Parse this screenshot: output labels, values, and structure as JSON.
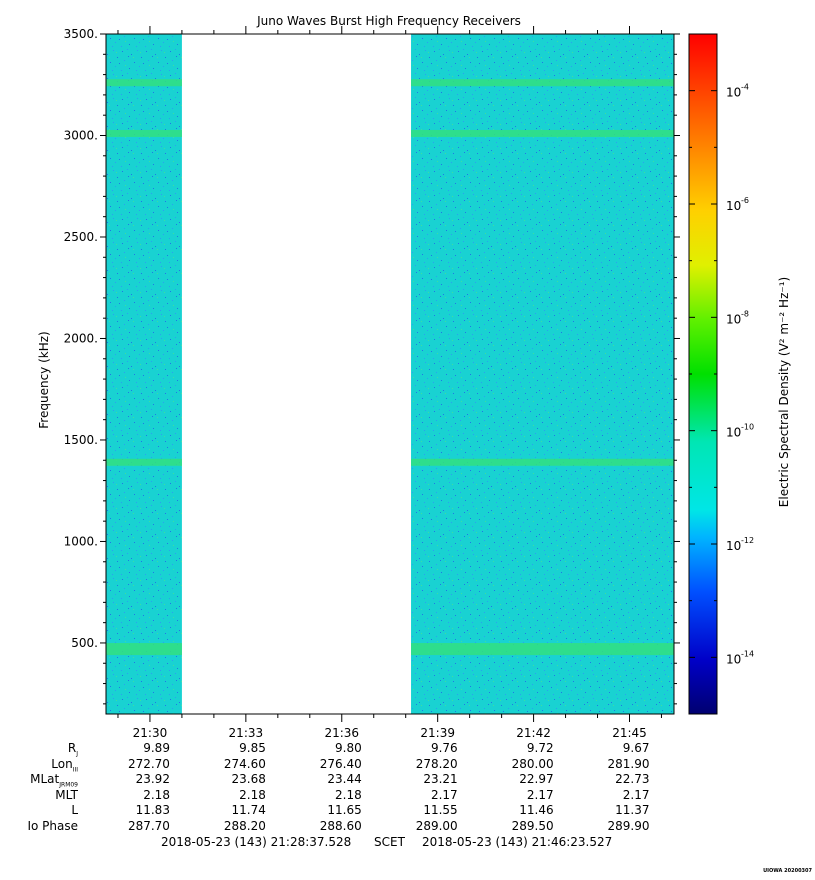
{
  "chart_data": {
    "type": "heatmap",
    "title": "Juno Waves Burst High Frequency Receivers",
    "ylabel": "Frequency (kHz)",
    "colorbar_label": "Electric Spectral Density (V² m⁻² Hz⁻¹)",
    "ylim": [
      150,
      3500
    ],
    "yticks": [
      500,
      1000,
      1500,
      2000,
      2500,
      3000,
      3500
    ],
    "ytick_labels": [
      "500.",
      "1000.",
      "1500.",
      "2000.",
      "2500.",
      "3000.",
      "3500."
    ],
    "xlim": [
      "21:28:37.528",
      "21:46:23.527"
    ],
    "xtick_labels": [
      "21:30",
      "21:33",
      "21:36",
      "21:39",
      "21:42",
      "21:45"
    ],
    "colorbar": {
      "scale": "log",
      "range": [
        1e-15,
        0.001
      ],
      "tick_bases": [
        "10",
        "10",
        "10",
        "10",
        "10",
        "10"
      ],
      "tick_exponents": [
        "-4",
        "-6",
        "-8",
        "-10",
        "-12",
        "-14"
      ],
      "tick_values": [
        0.0001,
        1e-06,
        1e-08,
        1e-10,
        1e-12,
        1e-14
      ]
    },
    "data_intervals": [
      {
        "start": "21:28:37.528",
        "end": "21:31:00"
      },
      {
        "start": "21:38:10",
        "end": "21:46:23.527"
      }
    ],
    "background_level": 1e-12,
    "emission_lines_khz": [
      470,
      1390,
      3010,
      3260
    ],
    "ephemeris": {
      "rows": [
        {
          "label": "R",
          "sub": "J",
          "values": [
            "9.89",
            "9.85",
            "9.80",
            "9.76",
            "9.72",
            "9.67"
          ]
        },
        {
          "label": "Lon",
          "sub": "III",
          "values": [
            "272.70",
            "274.60",
            "276.40",
            "278.20",
            "280.00",
            "281.90"
          ]
        },
        {
          "label": "MLat",
          "sub": "JRM09",
          "values": [
            "23.92",
            "23.68",
            "23.44",
            "23.21",
            "22.97",
            "22.73"
          ]
        },
        {
          "label": "MLT",
          "sub": "",
          "values": [
            "2.18",
            "2.18",
            "2.18",
            "2.17",
            "2.17",
            "2.17"
          ]
        },
        {
          "label": "L",
          "sub": "",
          "values": [
            "11.83",
            "11.74",
            "11.65",
            "11.55",
            "11.46",
            "11.37"
          ]
        },
        {
          "label": "Io Phase",
          "sub": "",
          "values": [
            "287.70",
            "288.20",
            "288.60",
            "289.00",
            "289.50",
            "289.90"
          ]
        }
      ]
    },
    "time_range": {
      "start": "2018-05-23 (143) 21:28:37.528",
      "scet": "SCET",
      "end": "2018-05-23 (143) 21:46:23.527"
    },
    "credit": "UIOWA 20200307"
  },
  "colors": {
    "background_cyan": "#19d2d2",
    "speckle_blue": "#1e78e6",
    "line_green": "#33e080"
  }
}
